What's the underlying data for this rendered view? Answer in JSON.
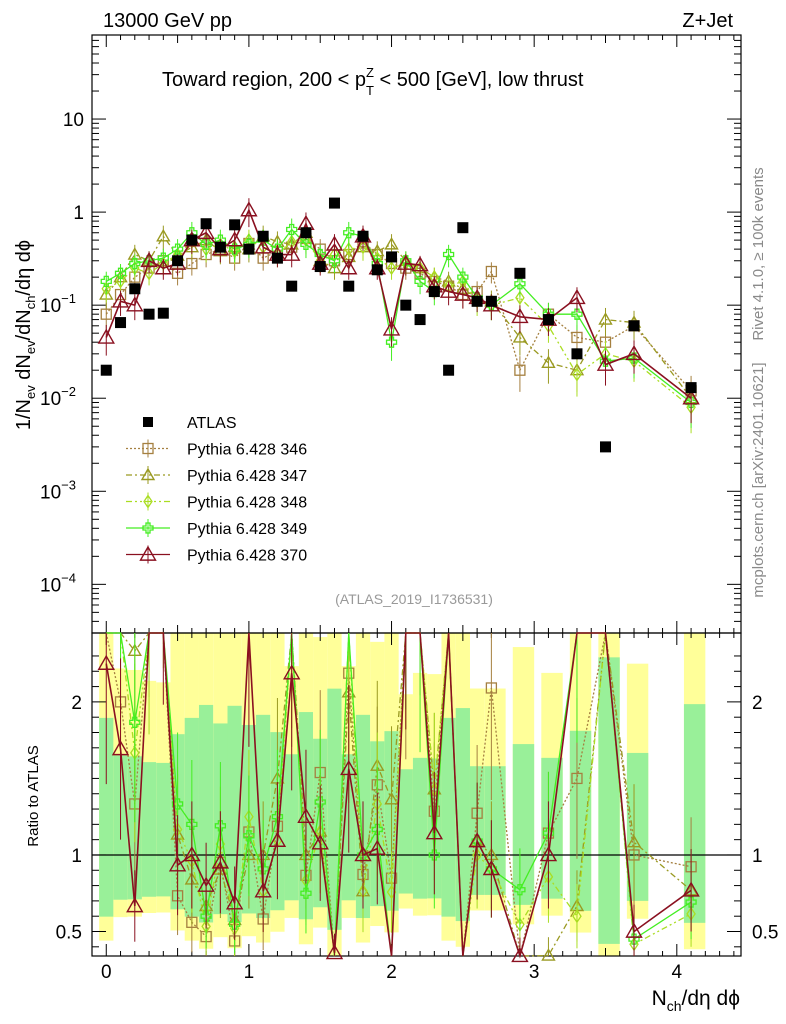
{
  "header": {
    "energy_label": "13000 GeV pp",
    "process_label": "Z+Jet",
    "title_prefix": "Toward region, 200 < p",
    "title_sup": "Z",
    "title_sub": "T",
    "title_suffix": " < 500 [GeV], low thrust",
    "analysis_id": "(ATLAS_2019_I1736531)",
    "rivet_label": "Rivet 4.1.0, ≥ 100k events",
    "site_label": "mcplots.cern.ch [arXiv:2401.10621]"
  },
  "colors": {
    "atlas": "#000000",
    "p346": "#a58040",
    "p347": "#9a9a22",
    "p348": "#aadd22",
    "p349": "#44ee22",
    "p370": "#8a1020",
    "band_yellow": "#ffff99",
    "band_green": "#99f099"
  },
  "chart_data": {
    "type": "scatter",
    "xlabel": {
      "base": "N",
      "sub": "ch",
      "tail": "/dη dϕ"
    },
    "ylabel": {
      "parts": [
        "1/N",
        "ev",
        " dN",
        "ev",
        "/dN",
        "ch",
        "/dη dϕ"
      ]
    },
    "ratio_ylabel": "Ratio to ATLAS",
    "xlim": [
      -0.1,
      4.45
    ],
    "ylim_main": [
      3e-05,
      80
    ],
    "ylim_ratio": [
      0.34,
      2.45
    ],
    "x_ticks": [
      "0",
      "1",
      "2",
      "3",
      "4"
    ],
    "y_ticks_main": [
      {
        "v": 0.0001,
        "mant": "10",
        "exp": "−4"
      },
      {
        "v": 0.001,
        "mant": "10",
        "exp": "−3"
      },
      {
        "v": 0.01,
        "mant": "10",
        "exp": "−2"
      },
      {
        "v": 0.1,
        "mant": "10",
        "exp": "−1"
      },
      {
        "v": 1,
        "mant": "1",
        "exp": ""
      },
      {
        "v": 10,
        "mant": "10",
        "exp": ""
      }
    ],
    "y_ticks_ratio": [
      {
        "v": 0.5,
        "label": "0.5"
      },
      {
        "v": 1,
        "label": "1"
      },
      {
        "v": 2,
        "label": "2"
      }
    ],
    "atlas": {
      "name": "ATLAS",
      "x": [
        0.0,
        0.1,
        0.2,
        0.3,
        0.4,
        0.5,
        0.6,
        0.7,
        0.8,
        0.9,
        1.0,
        1.1,
        1.2,
        1.3,
        1.4,
        1.5,
        1.6,
        1.7,
        1.8,
        1.9,
        2.0,
        2.1,
        2.2,
        2.3,
        2.4,
        2.5,
        2.6,
        2.7,
        2.9,
        3.1,
        3.3,
        3.5,
        3.7,
        4.1
      ],
      "y": [
        0.02,
        0.065,
        0.15,
        0.08,
        0.082,
        0.3,
        0.5,
        0.75,
        0.42,
        0.73,
        0.4,
        0.55,
        0.32,
        0.16,
        0.6,
        0.26,
        1.25,
        0.16,
        0.55,
        0.24,
        0.33,
        0.1,
        0.07,
        0.14,
        0.02,
        0.68,
        0.11,
        0.11,
        0.22,
        0.07,
        0.03,
        0.003,
        0.06,
        0.013
      ]
    },
    "series": [
      {
        "name": "Pythia 6.428 346",
        "marker": "square",
        "dash": "2,2",
        "color_key": "p346",
        "x": [
          0.0,
          0.1,
          0.2,
          0.3,
          0.4,
          0.5,
          0.6,
          0.7,
          0.8,
          0.9,
          1.0,
          1.1,
          1.2,
          1.3,
          1.4,
          1.5,
          1.6,
          1.7,
          1.8,
          1.9,
          2.0,
          2.1,
          2.2,
          2.3,
          2.4,
          2.5,
          2.6,
          2.7,
          2.9,
          3.1,
          3.3,
          3.5,
          3.7,
          4.1
        ],
        "y": [
          0.08,
          0.13,
          0.2,
          0.25,
          0.3,
          0.22,
          0.28,
          0.35,
          0.4,
          0.32,
          0.46,
          0.32,
          0.38,
          0.42,
          0.52,
          0.4,
          0.3,
          0.35,
          0.48,
          0.35,
          0.28,
          0.25,
          0.22,
          0.18,
          0.16,
          0.13,
          0.14,
          0.23,
          0.02,
          0.08,
          0.045,
          0.04,
          0.06,
          0.012
        ]
      },
      {
        "name": "Pythia 6.428 347",
        "marker": "triangle",
        "dash": "6,3,2,3",
        "color_key": "p347",
        "x": [
          0.0,
          0.1,
          0.2,
          0.3,
          0.4,
          0.5,
          0.6,
          0.7,
          0.8,
          0.9,
          1.0,
          1.1,
          1.2,
          1.3,
          1.4,
          1.5,
          1.6,
          1.7,
          1.8,
          1.9,
          2.0,
          2.1,
          2.2,
          2.3,
          2.4,
          2.5,
          2.6,
          2.7,
          2.9,
          3.1,
          3.3,
          3.5,
          3.7,
          4.1
        ],
        "y": [
          0.13,
          0.2,
          0.35,
          0.3,
          0.55,
          0.34,
          0.42,
          0.5,
          0.38,
          0.42,
          0.4,
          0.55,
          0.48,
          0.45,
          0.6,
          0.3,
          0.25,
          0.33,
          0.42,
          0.38,
          0.45,
          0.3,
          0.25,
          0.2,
          0.18,
          0.15,
          0.12,
          0.11,
          0.045,
          0.024,
          0.02,
          0.07,
          0.065,
          0.01
        ]
      },
      {
        "name": "Pythia 6.428 348",
        "marker": "diamond",
        "dash": "6,3,2,3,2,3",
        "color_key": "p348",
        "x": [
          0.0,
          0.1,
          0.2,
          0.3,
          0.4,
          0.5,
          0.6,
          0.7,
          0.8,
          0.9,
          1.0,
          1.1,
          1.2,
          1.3,
          1.4,
          1.5,
          1.6,
          1.7,
          1.8,
          1.9,
          2.0,
          2.1,
          2.2,
          2.3,
          2.4,
          2.5,
          2.6,
          2.7,
          2.9,
          3.1,
          3.3,
          3.5,
          3.7,
          4.1
        ],
        "y": [
          0.15,
          0.18,
          0.25,
          0.22,
          0.28,
          0.35,
          0.48,
          0.4,
          0.45,
          0.38,
          0.5,
          0.42,
          0.35,
          0.48,
          0.5,
          0.3,
          0.35,
          0.4,
          0.42,
          0.32,
          0.25,
          0.28,
          0.25,
          0.2,
          0.16,
          0.18,
          0.11,
          0.1,
          0.12,
          0.06,
          0.018,
          0.03,
          0.025,
          0.008
        ]
      },
      {
        "name": "Pythia 6.428 349",
        "marker": "cross",
        "dash": "",
        "color_key": "p349",
        "x": [
          0.0,
          0.1,
          0.2,
          0.3,
          0.4,
          0.5,
          0.6,
          0.7,
          0.8,
          0.9,
          1.0,
          1.1,
          1.2,
          1.3,
          1.4,
          1.5,
          1.6,
          1.7,
          1.8,
          1.9,
          2.0,
          2.1,
          2.2,
          2.3,
          2.4,
          2.5,
          2.6,
          2.7,
          2.9,
          3.1,
          3.3,
          3.5,
          3.7,
          4.1
        ],
        "y": [
          0.18,
          0.22,
          0.28,
          0.3,
          0.32,
          0.4,
          0.6,
          0.45,
          0.5,
          0.4,
          0.45,
          0.5,
          0.4,
          0.65,
          0.45,
          0.35,
          0.3,
          0.6,
          0.55,
          0.28,
          0.04,
          0.3,
          0.18,
          0.14,
          0.35,
          0.2,
          0.12,
          0.1,
          0.17,
          0.08,
          0.08,
          0.025,
          0.027,
          0.009
        ]
      },
      {
        "name": "Pythia 6.428 370",
        "marker": "triangle-open",
        "dash": "",
        "color_key": "p370",
        "x": [
          0.0,
          0.1,
          0.2,
          0.3,
          0.4,
          0.5,
          0.6,
          0.7,
          0.8,
          0.9,
          1.0,
          1.1,
          1.2,
          1.3,
          1.4,
          1.5,
          1.6,
          1.7,
          1.8,
          1.9,
          2.0,
          2.1,
          2.2,
          2.3,
          2.4,
          2.5,
          2.6,
          2.7,
          2.9,
          3.1,
          3.3,
          3.5,
          3.7,
          4.1
        ],
        "y": [
          0.045,
          0.11,
          0.1,
          0.3,
          0.25,
          0.28,
          0.5,
          0.6,
          0.4,
          0.5,
          1.05,
          0.42,
          0.35,
          0.35,
          0.75,
          0.28,
          0.45,
          0.25,
          0.55,
          0.25,
          0.055,
          0.28,
          0.27,
          0.16,
          0.14,
          0.13,
          0.12,
          0.1,
          0.075,
          0.07,
          0.12,
          0.023,
          0.03,
          0.01
        ]
      }
    ]
  }
}
